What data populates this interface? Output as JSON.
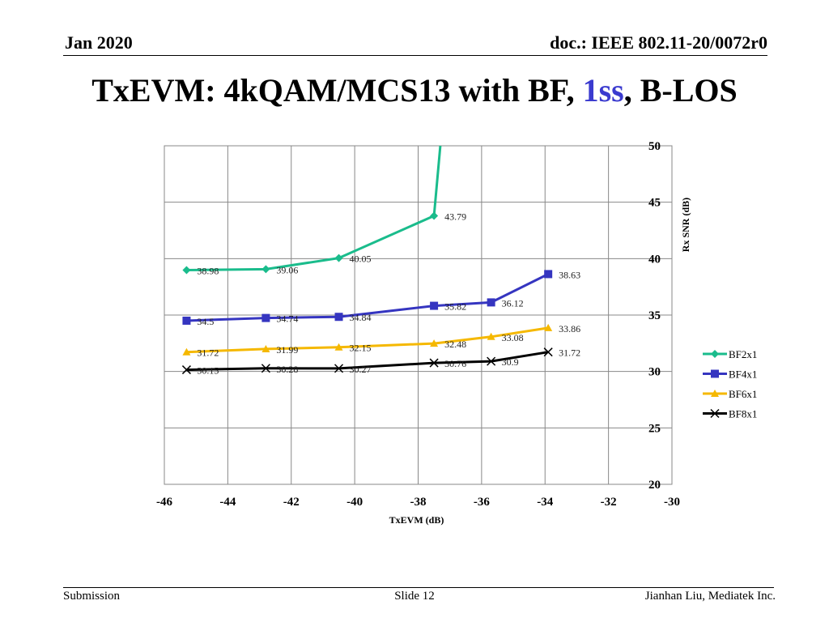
{
  "header": {
    "date": "Jan 2020",
    "doc": "doc.: IEEE 802.11-20/0072r0"
  },
  "title": {
    "prefix": "TxEVM: 4kQAM/MCS13 with BF, ",
    "accent": "1ss",
    "suffix": ", B-LOS"
  },
  "footer": {
    "left": "Submission",
    "center": "Slide 12",
    "right": "Jianhan Liu, Mediatek Inc."
  },
  "chart_data": {
    "type": "line",
    "title": "",
    "xlabel": "TxEVM (dB)",
    "ylabel": "Rx SNR (dB)",
    "xlim": [
      -46,
      -30
    ],
    "ylim": [
      20,
      50
    ],
    "xticks": [
      -46,
      -44,
      -42,
      -40,
      -38,
      -36,
      -34,
      -32,
      -30
    ],
    "yticks": [
      20,
      25,
      30,
      35,
      40,
      45,
      50
    ],
    "xtick_labels": [
      "-46",
      "-44",
      "-42",
      "-40",
      "-38",
      "-36",
      "-34",
      "-32",
      "-30"
    ],
    "ytick_labels": [
      "20",
      "25",
      "30",
      "35",
      "40",
      "45",
      "50"
    ],
    "grid": true,
    "legend_position": "right",
    "series": [
      {
        "name": "BF2x1",
        "color": "#1abc8c",
        "marker": "diamond",
        "x": [
          -45.3,
          -42.8,
          -40.5,
          -37.5,
          -37.3
        ],
        "values": [
          38.98,
          39.06,
          40.05,
          43.79,
          50
        ],
        "labels": [
          "38.98",
          "39.06",
          "40.05",
          "43.79",
          null
        ]
      },
      {
        "name": "BF4x1",
        "color": "#3535c0",
        "marker": "square",
        "x": [
          -45.3,
          -42.8,
          -40.5,
          -37.5,
          -35.7,
          -33.9
        ],
        "values": [
          34.5,
          34.74,
          34.84,
          35.82,
          36.12,
          38.63
        ],
        "labels": [
          "34.5",
          "34.74",
          "34.84",
          "35.82",
          "36.12",
          "38.63"
        ]
      },
      {
        "name": "BF6x1",
        "color": "#f5b800",
        "marker": "triangle",
        "x": [
          -45.3,
          -42.8,
          -40.5,
          -37.5,
          -35.7,
          -33.9
        ],
        "values": [
          31.72,
          31.99,
          32.15,
          32.48,
          33.08,
          33.86
        ],
        "labels": [
          "31.72",
          "31.99",
          "32.15",
          "32.48",
          "33.08",
          "33.86"
        ]
      },
      {
        "name": "BF8x1",
        "color": "#000000",
        "marker": "x",
        "x": [
          -45.3,
          -42.8,
          -40.5,
          -37.5,
          -35.7,
          -33.9
        ],
        "values": [
          30.15,
          30.28,
          30.27,
          30.76,
          30.9,
          31.72
        ],
        "labels": [
          "30.15",
          "30.28",
          "30.27",
          "30.76",
          "30.9",
          "31.72"
        ]
      }
    ]
  }
}
